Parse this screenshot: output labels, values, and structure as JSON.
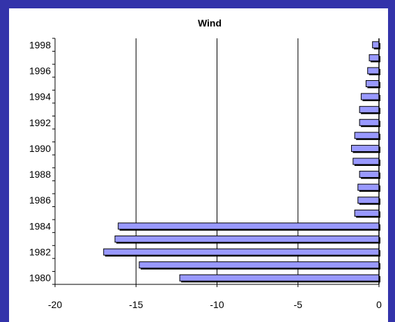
{
  "chart_data": {
    "type": "bar",
    "orientation": "horizontal",
    "title": "Wind",
    "xlabel": "",
    "ylabel": "",
    "categories": [
      "1980",
      "1981",
      "1982",
      "1983",
      "1984",
      "1985",
      "1986",
      "1987",
      "1988",
      "1989",
      "1990",
      "1991",
      "1992",
      "1993",
      "1994",
      "1995",
      "1996",
      "1997",
      "1998"
    ],
    "y_tick_labels": [
      "1980",
      "1982",
      "1984",
      "1986",
      "1988",
      "1990",
      "1992",
      "1994",
      "1996",
      "1998"
    ],
    "x_ticks": [
      -20,
      -15,
      -10,
      -5,
      0
    ],
    "xlim": [
      -20,
      0
    ],
    "series": [
      {
        "values": [
          -12.3,
          -14.8,
          -17.0,
          -16.3,
          -16.1,
          -1.5,
          -1.3,
          -1.3,
          -1.2,
          -1.6,
          -1.7,
          -1.5,
          -1.2,
          -1.2,
          -1.1,
          -0.8,
          -0.7,
          -0.6,
          -0.4
        ]
      }
    ],
    "grid": "vertical",
    "legend": "none",
    "colors": {
      "bar_fill": "#9999ff",
      "bar_outline": "#000000",
      "bar_shadow": "#000000",
      "background": "#3333aa",
      "plot_background": "#ffffff"
    }
  }
}
